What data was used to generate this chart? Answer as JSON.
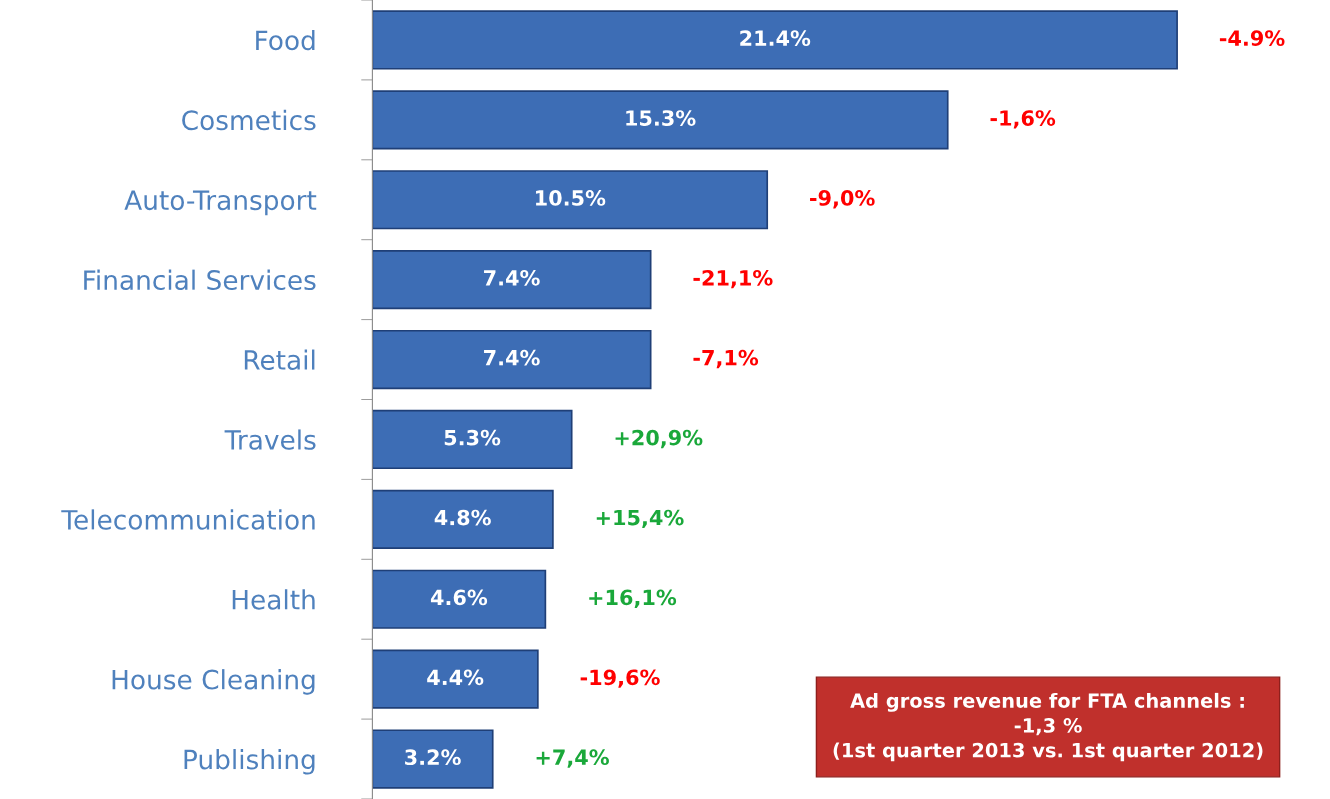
{
  "chart_data": {
    "type": "bar",
    "orientation": "horizontal",
    "categories": [
      "Food",
      "Cosmetics",
      "Auto-Transport",
      "Financial Services",
      "Retail",
      "Travels",
      "Telecommunication",
      "Health",
      "House Cleaning",
      "Publishing"
    ],
    "values": [
      21.4,
      15.3,
      10.5,
      7.4,
      7.4,
      5.3,
      4.8,
      4.6,
      4.4,
      3.2
    ],
    "color": "#3d6db5",
    "value_labels": [
      "21.4%",
      "15.3%",
      "10.5%",
      "7.4%",
      "7.4%",
      "5.3%",
      "4.8%",
      "4.6%",
      "4.4%",
      "3.2%"
    ],
    "annotations": [
      {
        "text": "-4.9%",
        "x": 21.4,
        "y": "Food"
      },
      {
        "text": "-1,6%",
        "x": 15.3,
        "y": "Cosmetics"
      },
      {
        "text": "-9,0%",
        "x": 10.5,
        "y": "Auto-Transport"
      },
      {
        "text": "-21,1%",
        "x": 7.4,
        "y": "Financial Services"
      },
      {
        "text": "-7,1%",
        "x": 7.4,
        "y": "Retail"
      },
      {
        "text": "+20,9%",
        "x": 5.3,
        "y": "Travels"
      },
      {
        "text": "+15,4%",
        "x": 4.8,
        "y": "Telecommunication"
      },
      {
        "text": "+16,1%",
        "x": 4.6,
        "y": "Health"
      },
      {
        "text": "-19,6%",
        "x": 4.4,
        "y": "House Cleaning"
      },
      {
        "text": "+7,4%",
        "x": 3.2,
        "y": "Publishing"
      },
      "Ad gross revenue for FTA channels :\n-1,3 %\n(1st quarter 2013 vs. 1st quarter 2012)"
    ],
    "tick_labels": "y",
    "grid": false,
    "legend": false
  }
}
